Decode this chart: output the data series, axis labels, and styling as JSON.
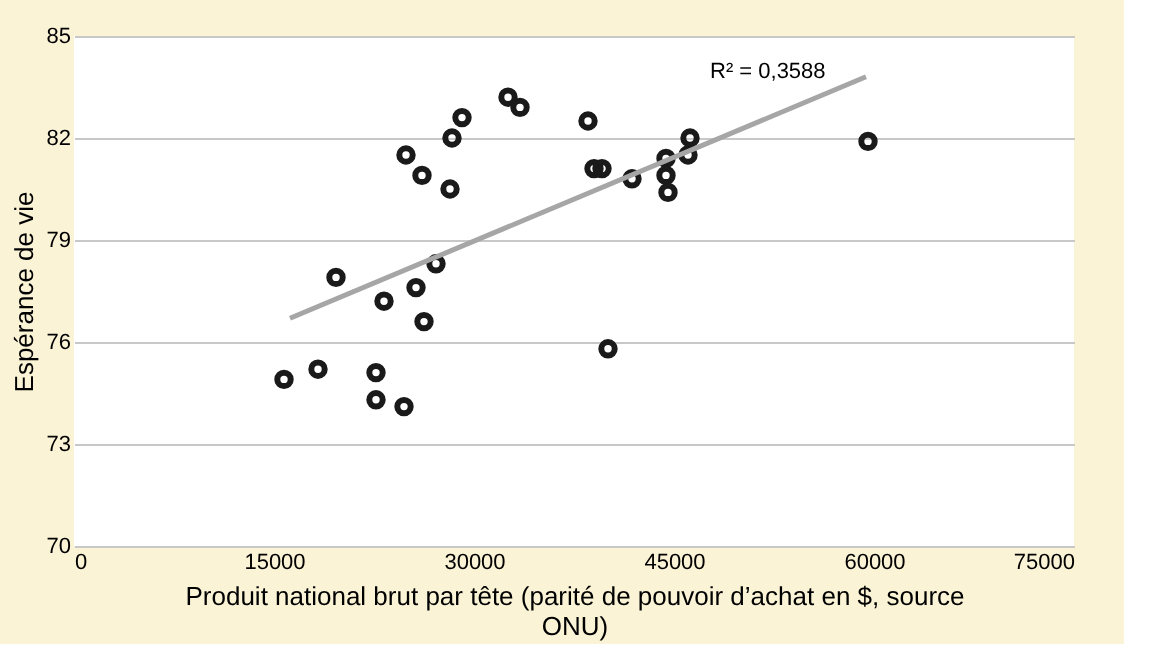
{
  "chart_data": {
    "type": "scatter",
    "xlabel": "Produit national brut par tête (parité de pouvoir d’achat en $, source ONU)",
    "ylabel": "Espérance de vie",
    "annotations": [
      "R² = 0,3588"
    ],
    "xlim": [
      0,
      75000
    ],
    "xticks": [
      0,
      15000,
      30000,
      45000,
      60000,
      75000
    ],
    "ylim": [
      70,
      85
    ],
    "yticks": [
      70,
      73,
      76,
      79,
      82,
      85
    ],
    "grid": "y",
    "marker": "circle",
    "legend": false,
    "series": [
      {
        "color": "#1a1a1a",
        "x": [
          15750,
          18300,
          19650,
          22650,
          23250,
          22650,
          24750,
          24900,
          25650,
          26250,
          26100,
          27150,
          28200,
          28350,
          29100,
          32550,
          33450,
          38550,
          39000,
          39600,
          40050,
          41850,
          44400,
          44400,
          44550,
          46050,
          46200,
          59550
        ],
        "values": [
          74.9,
          75.2,
          77.9,
          75.1,
          77.2,
          74.3,
          74.1,
          81.5,
          77.6,
          76.6,
          80.9,
          78.3,
          80.5,
          82.0,
          82.6,
          83.2,
          82.9,
          82.5,
          81.1,
          81.1,
          75.8,
          80.8,
          81.4,
          80.9,
          80.4,
          81.5,
          82.0,
          81.9
        ]
      },
      {
        "type": "line",
        "color": "#a6a6a6",
        "marker": "none",
        "x": [
          16200,
          59400
        ],
        "values": [
          76.7,
          83.8
        ]
      }
    ]
  }
}
